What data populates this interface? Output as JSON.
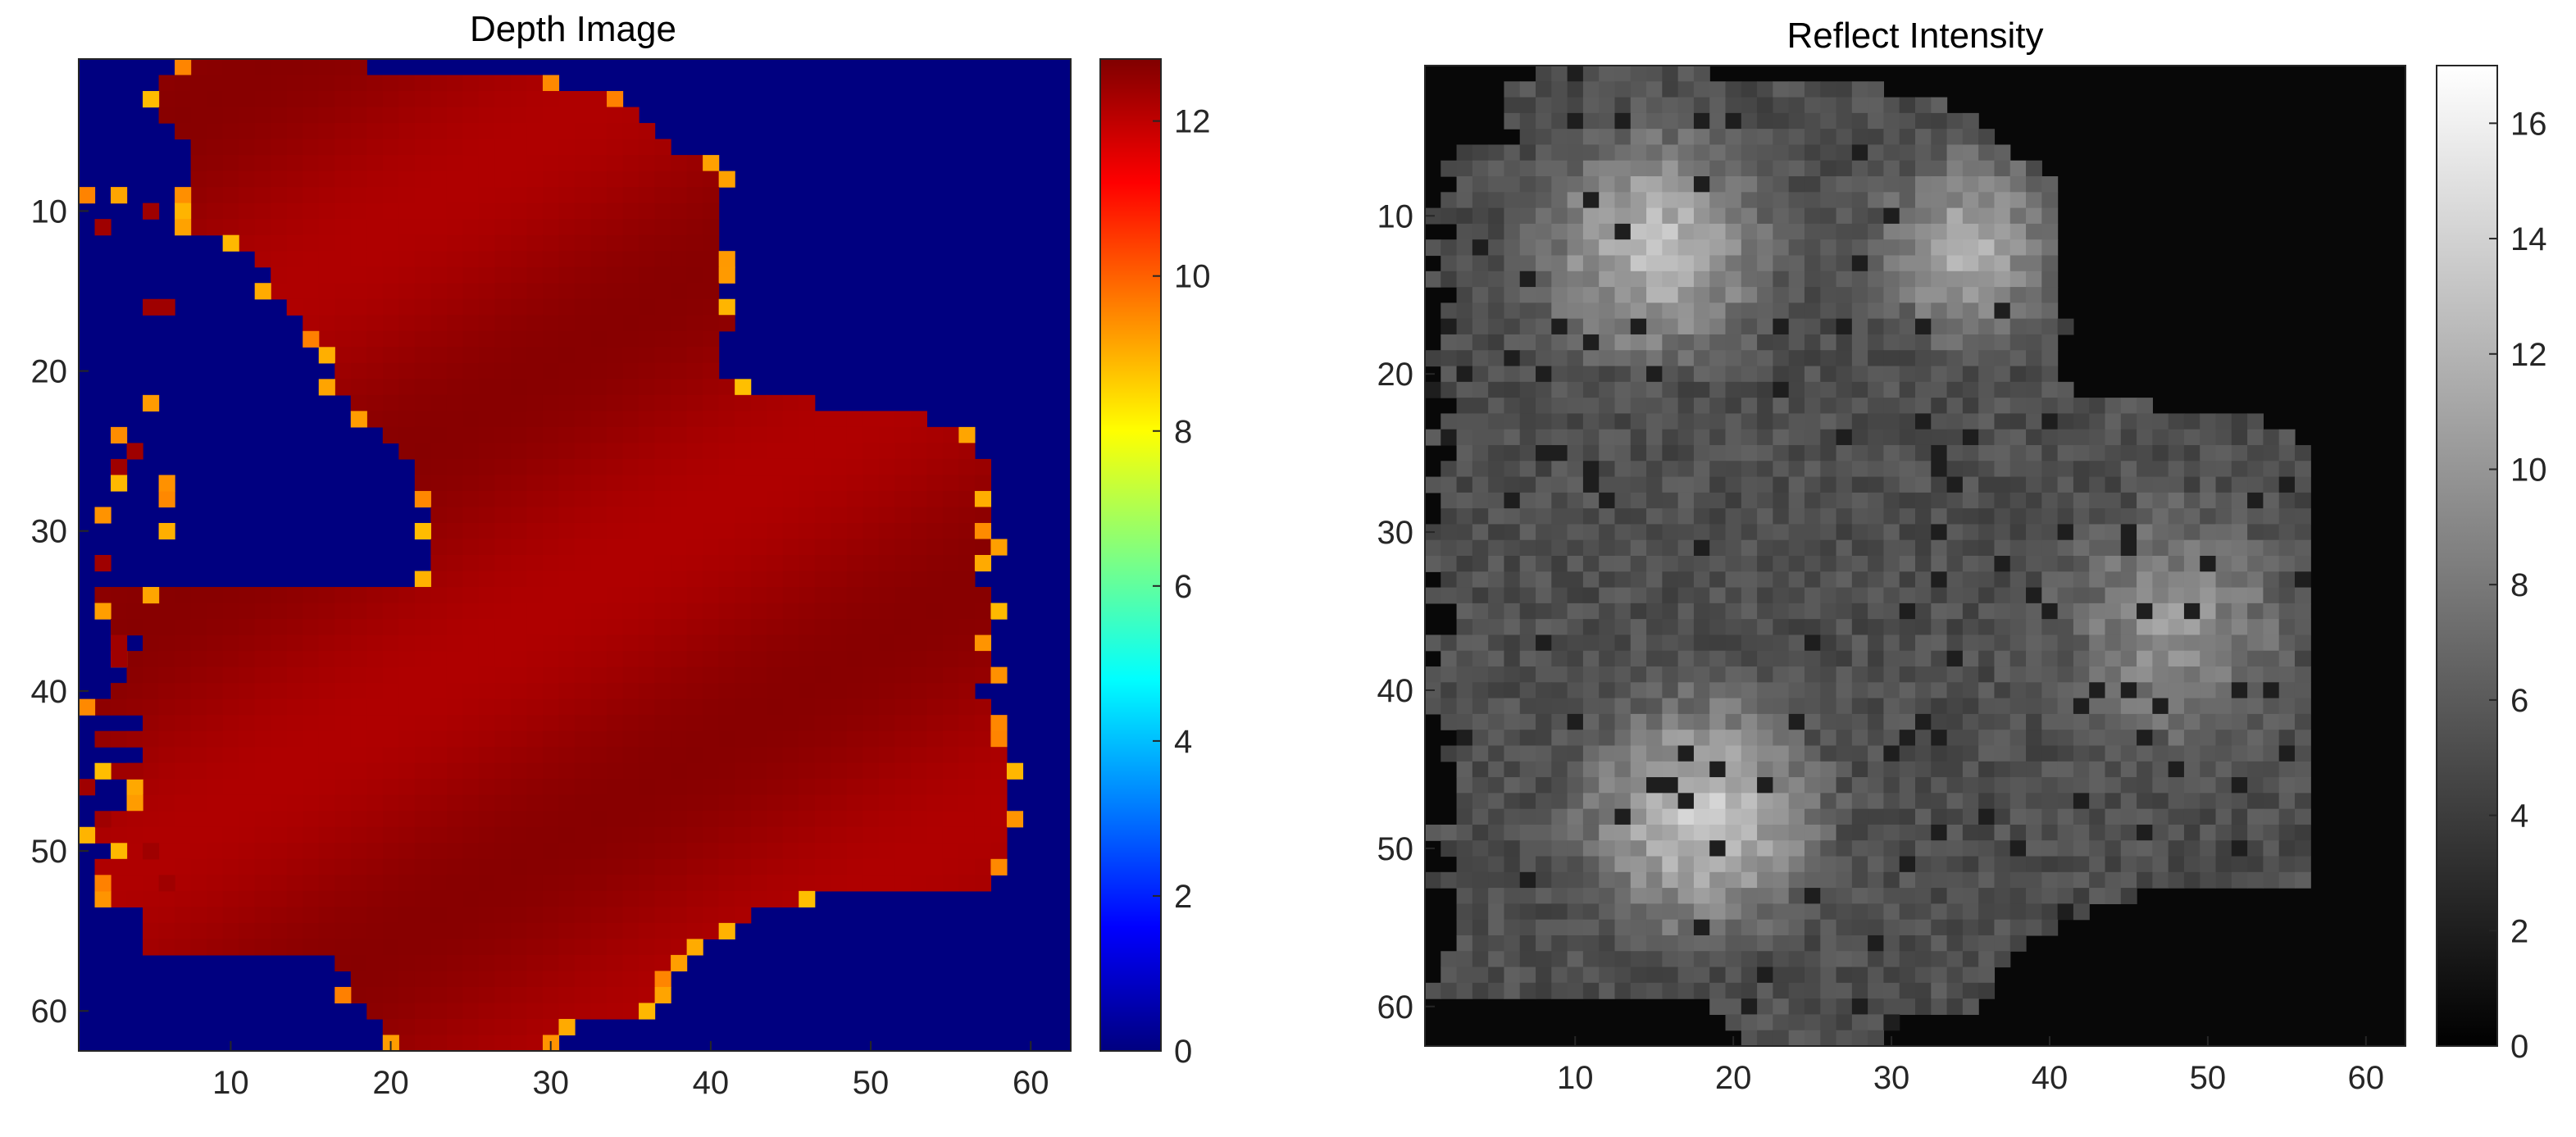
{
  "chart_data": [
    {
      "type": "heatmap",
      "title": "Depth Image",
      "grid_size": [
        62,
        62
      ],
      "xlim": [
        0.5,
        62.5
      ],
      "ylim": [
        0.5,
        62.5
      ],
      "y_direction": "reversed",
      "xticks": [
        10,
        20,
        30,
        40,
        50,
        60
      ],
      "yticks": [
        10,
        20,
        30,
        40,
        50,
        60
      ],
      "colormap": "jet",
      "colorbar": {
        "range": [
          0,
          12.8
        ],
        "ticks": [
          0,
          2,
          4,
          6,
          8,
          10,
          12
        ]
      },
      "background_value": 0,
      "object_value_range": [
        12.2,
        12.7
      ],
      "edge_value_range": [
        8.8,
        9.6
      ],
      "object_rows": [
        [
          8,
          18
        ],
        [
          6,
          29
        ],
        [
          6,
          33
        ],
        [
          6,
          35
        ],
        [
          7,
          36
        ],
        [
          9,
          37
        ],
        [
          9,
          39
        ],
        [
          10,
          40
        ],
        [
          10,
          40
        ],
        [
          11,
          40
        ],
        [
          11,
          40
        ],
        [
          11,
          40
        ],
        [
          12,
          40
        ],
        [
          13,
          40
        ],
        [
          13,
          40
        ],
        [
          14,
          40
        ],
        [
          15,
          41
        ],
        [
          16,
          40
        ],
        [
          17,
          40
        ],
        [
          17,
          40
        ],
        [
          17,
          41
        ],
        [
          18,
          46
        ],
        [
          19,
          53
        ],
        [
          20,
          55
        ],
        [
          21,
          56
        ],
        [
          22,
          57
        ],
        [
          22,
          57
        ],
        [
          23,
          56
        ],
        [
          23,
          57
        ],
        [
          23,
          56
        ],
        [
          23,
          57
        ],
        [
          23,
          56
        ],
        [
          23,
          56
        ],
        [
          23,
          57
        ],
        [
          23,
          57
        ],
        [
          23,
          57
        ],
        [
          23,
          56
        ],
        [
          23,
          57
        ],
        [
          23,
          57
        ],
        [
          22,
          56
        ],
        [
          21,
          57
        ],
        [
          20,
          57
        ],
        [
          19,
          57
        ],
        [
          18,
          58
        ],
        [
          17,
          58
        ],
        [
          16,
          58
        ],
        [
          15,
          58
        ],
        [
          14,
          58
        ],
        [
          14,
          58
        ],
        [
          13,
          58
        ],
        [
          13,
          57
        ],
        [
          14,
          57
        ],
        [
          14,
          45
        ],
        [
          14,
          42
        ],
        [
          15,
          40
        ],
        [
          16,
          38
        ],
        [
          17,
          37
        ],
        [
          18,
          36
        ],
        [
          18,
          36
        ],
        [
          19,
          35
        ],
        [
          20,
          30
        ],
        [
          21,
          29
        ]
      ],
      "left_lobe_rows": [
        [
          3,
          10,
          55
        ],
        [
          8,
          12,
          58
        ]
      ]
    },
    {
      "type": "heatmap",
      "title": "Reflect Intensity",
      "grid_size": [
        62,
        62
      ],
      "xlim": [
        0.5,
        62.5
      ],
      "ylim": [
        0.5,
        62.5
      ],
      "y_direction": "reversed",
      "xticks": [
        10,
        20,
        30,
        40,
        50,
        60
      ],
      "yticks": [
        10,
        20,
        30,
        40,
        50,
        60
      ],
      "colormap": "gray",
      "colorbar": {
        "range": [
          0,
          17
        ],
        "ticks": [
          0,
          2,
          4,
          6,
          8,
          10,
          12,
          14,
          16
        ]
      },
      "background_value": 0.5,
      "bright_regions": [
        {
          "center": [
            15,
            12
          ],
          "radius": 6,
          "value": 12
        },
        {
          "center": [
            35,
            12
          ],
          "radius": 5,
          "value": 11
        },
        {
          "center": [
            18,
            48
          ],
          "radius": 6,
          "value": 13
        },
        {
          "center": [
            48,
            36
          ],
          "radius": 7,
          "value": 9
        }
      ]
    }
  ]
}
